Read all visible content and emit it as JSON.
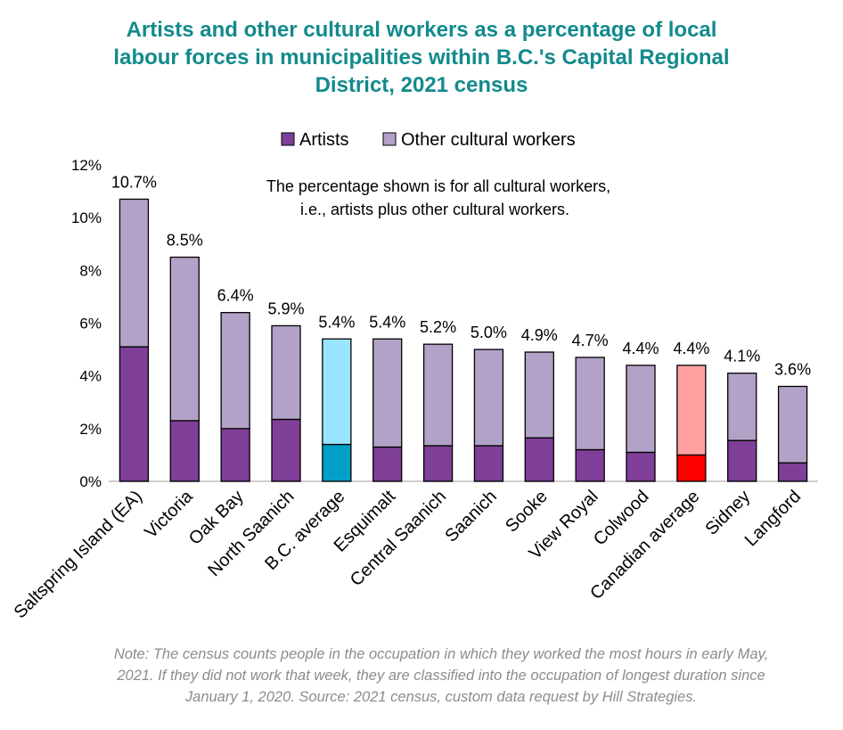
{
  "chart_data": {
    "type": "bar",
    "stacked": true,
    "title_lines": [
      "Artists and other cultural workers as a percentage of local",
      "labour forces in municipalities within B.C.'s Capital Regional",
      "District, 2021 census"
    ],
    "legend": [
      "Artists",
      "Other cultural workers"
    ],
    "legend_position": "top",
    "annotation_lines": [
      "The percentage shown is for all cultural workers,",
      "i.e., artists plus other cultural workers."
    ],
    "note_lines": [
      "Note: The census counts people in the occupation in which they worked the most hours in early May,",
      "2021. If they did not work that week, they are classified into the occupation of longest duration since",
      "January 1, 2020. Source: 2021 census, custom data request by Hill Strategies."
    ],
    "categories": [
      "Saltspring Island (EA)",
      "Victoria",
      "Oak Bay",
      "North Saanich",
      "B.C. average",
      "Esquimalt",
      "Central Saanich",
      "Saanich",
      "Sooke",
      "View Royal",
      "Colwood",
      "Canadian average",
      "Sidney",
      "Langford"
    ],
    "series": [
      {
        "name": "Artists",
        "values": [
          5.1,
          2.3,
          2.0,
          2.35,
          1.4,
          1.3,
          1.35,
          1.35,
          1.65,
          1.2,
          1.1,
          1.0,
          1.55,
          0.7
        ]
      },
      {
        "name": "Other cultural workers",
        "values": [
          5.6,
          6.2,
          4.4,
          3.55,
          4.0,
          4.1,
          3.85,
          3.65,
          3.25,
          3.5,
          3.3,
          3.4,
          2.55,
          2.9
        ]
      }
    ],
    "totals": [
      10.7,
      8.5,
      6.4,
      5.9,
      5.4,
      5.4,
      5.2,
      5.0,
      4.9,
      4.7,
      4.4,
      4.4,
      4.1,
      3.6
    ],
    "data_labels": [
      "10.7%",
      "8.5%",
      "6.4%",
      "5.9%",
      "5.4%",
      "5.4%",
      "5.2%",
      "5.0%",
      "4.9%",
      "4.7%",
      "4.4%",
      "4.4%",
      "4.1%",
      "3.6%"
    ],
    "ylim": [
      0,
      12
    ],
    "yticks": [
      0,
      2,
      4,
      6,
      8,
      10,
      12
    ],
    "ytick_labels": [
      "0%",
      "2%",
      "4%",
      "6%",
      "8%",
      "10%",
      "12%"
    ],
    "gridlines": false,
    "colors": {
      "title": "#128a8c",
      "artists": "#7f3f98",
      "other": "#b3a2c7",
      "bc_artists": "#00a0c6",
      "bc_other": "#99e5ff",
      "canada_artists": "#ff0000",
      "canada_other": "#ffa0a0",
      "note": "#8c8c8c"
    },
    "highlight": {
      "B.C. average": "bc",
      "Canadian average": "canada"
    }
  }
}
